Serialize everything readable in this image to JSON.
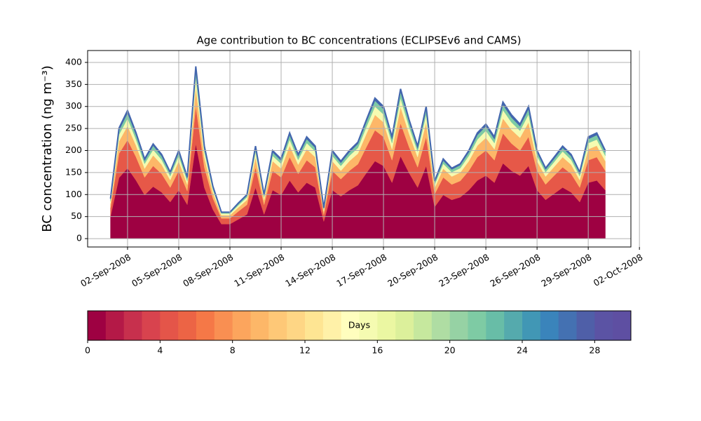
{
  "chart_data": {
    "type": "stacked-area",
    "title": "Age contribution to BC concentrations (ECLIPSEv6 and CAMS)",
    "ylabel": "BC concentration (ng m⁻³)",
    "x": [
      1,
      1.5,
      2,
      2.5,
      3,
      3.5,
      4,
      4.5,
      5,
      5.5,
      6,
      6.5,
      7,
      7.5,
      8,
      8.5,
      9,
      9.5,
      10,
      10.5,
      11,
      11.5,
      12,
      12.5,
      13,
      13.5,
      14,
      14.5,
      15,
      15.5,
      16,
      16.5,
      17,
      17.5,
      18,
      18.5,
      19,
      19.5,
      20,
      20.5,
      21,
      21.5,
      22,
      22.5,
      23,
      23.5,
      24,
      24.5,
      25,
      25.5,
      26,
      26.5,
      27,
      27.5,
      28,
      28.5,
      29,
      29.5,
      30
    ],
    "series": [
      {
        "color": "#9e0142",
        "values": [
          50,
          138,
          160,
          132,
          99,
          118,
          105,
          83,
          110,
          77,
          215,
          116,
          66,
          33,
          33,
          44,
          55,
          116,
          55,
          110,
          99,
          132,
          105,
          127,
          116,
          39,
          110,
          96,
          110,
          121,
          149,
          176,
          165,
          127,
          187,
          149,
          116,
          165,
          72,
          99,
          88,
          94,
          110,
          132,
          143,
          127,
          171,
          154,
          143,
          165,
          110,
          88,
          102,
          116,
          105,
          83,
          127,
          132,
          110
        ]
      },
      {
        "color": "#e65848",
        "values": [
          20,
          55,
          64,
          53,
          40,
          47,
          42,
          33,
          44,
          31,
          86,
          46,
          26,
          13,
          13,
          18,
          22,
          46,
          22,
          44,
          40,
          53,
          42,
          51,
          46,
          15,
          44,
          39,
          44,
          48,
          59,
          70,
          66,
          51,
          75,
          59,
          46,
          66,
          29,
          40,
          35,
          37,
          44,
          53,
          57,
          51,
          68,
          62,
          57,
          66,
          44,
          35,
          41,
          46,
          42,
          33,
          51,
          53,
          44
        ]
      },
      {
        "color": "#fdb768",
        "values": [
          10,
          28,
          32,
          26,
          20,
          24,
          21,
          17,
          22,
          15,
          43,
          23,
          13,
          7,
          7,
          9,
          11,
          23,
          11,
          22,
          20,
          26,
          21,
          25,
          23,
          8,
          22,
          19,
          22,
          24,
          30,
          35,
          33,
          25,
          37,
          30,
          23,
          33,
          14,
          20,
          18,
          19,
          22,
          26,
          29,
          25,
          34,
          31,
          29,
          33,
          22,
          18,
          20,
          23,
          21,
          17,
          25,
          26,
          22
        ]
      },
      {
        "color": "#f5fbb1",
        "values": [
          5,
          15,
          17,
          14,
          11,
          13,
          11,
          9,
          12,
          8,
          23,
          13,
          7,
          4,
          4,
          5,
          6,
          13,
          6,
          12,
          11,
          14,
          11,
          14,
          13,
          4,
          12,
          11,
          12,
          13,
          16,
          19,
          18,
          14,
          20,
          16,
          13,
          18,
          8,
          11,
          10,
          10,
          12,
          14,
          16,
          14,
          19,
          17,
          16,
          18,
          12,
          10,
          11,
          13,
          11,
          9,
          14,
          14,
          12
        ]
      },
      {
        "color": "#7ecba4",
        "values": [
          4,
          10,
          12,
          10,
          7,
          9,
          8,
          6,
          8,
          6,
          16,
          8,
          5,
          2,
          2,
          3,
          4,
          8,
          4,
          8,
          7,
          10,
          8,
          9,
          8,
          3,
          8,
          7,
          8,
          9,
          11,
          13,
          12,
          9,
          14,
          11,
          8,
          12,
          5,
          7,
          6,
          7,
          8,
          10,
          10,
          9,
          12,
          11,
          10,
          12,
          8,
          6,
          7,
          8,
          8,
          6,
          9,
          10,
          8
        ]
      },
      {
        "color": "#4366ae",
        "values": [
          2,
          5,
          6,
          5,
          4,
          4,
          4,
          3,
          4,
          3,
          8,
          4,
          2,
          1,
          1,
          2,
          2,
          4,
          2,
          4,
          4,
          5,
          4,
          5,
          4,
          1,
          4,
          4,
          4,
          4,
          5,
          6,
          6,
          5,
          7,
          5,
          4,
          6,
          3,
          4,
          3,
          3,
          4,
          5,
          5,
          5,
          6,
          6,
          5,
          6,
          4,
          3,
          4,
          4,
          4,
          3,
          5,
          5,
          4
        ]
      }
    ],
    "xlim": [
      -0.34,
      31.5
    ],
    "xticks": [
      {
        "value": 2,
        "label": "02-Sep-2008"
      },
      {
        "value": 5,
        "label": "05-Sep-2008"
      },
      {
        "value": 8,
        "label": "08-Sep-2008"
      },
      {
        "value": 11,
        "label": "11-Sep-2008"
      },
      {
        "value": 14,
        "label": "14-Sep-2008"
      },
      {
        "value": 17,
        "label": "17-Sep-2008"
      },
      {
        "value": 20,
        "label": "20-Sep-2008"
      },
      {
        "value": 23,
        "label": "23-Sep-2008"
      },
      {
        "value": 26,
        "label": "26-Sep-2008"
      },
      {
        "value": 29,
        "label": "29-Sep-2008"
      },
      {
        "value": 32,
        "label": "02-Oct-2008"
      }
    ],
    "ylim": [
      -19,
      427
    ],
    "yticks": [
      0,
      50,
      100,
      150,
      200,
      250,
      300,
      350,
      400
    ],
    "grid": true,
    "colorbar": {
      "label": "Days",
      "lim": [
        0,
        30
      ],
      "ticks": [
        0,
        4,
        8,
        12,
        16,
        20,
        24,
        28
      ],
      "colors": [
        "#9e0142",
        "#b41947",
        "#c7304d",
        "#d8434e",
        "#e45549",
        "#ec6445",
        "#f57847",
        "#f98f52",
        "#fca55d",
        "#fdb768",
        "#fec877",
        "#fed685",
        "#fee593",
        "#fff1a8",
        "#fffebe",
        "#f5fbb1",
        "#ebf7a2",
        "#dcf09b",
        "#c6e89e",
        "#afdda3",
        "#96d2a4",
        "#7ecba4",
        "#68bda7",
        "#55aaad",
        "#4197b5",
        "#3a84bb",
        "#4471b2",
        "#4f5fa8",
        "#5b53a4",
        "#5e4fa2"
      ]
    }
  }
}
